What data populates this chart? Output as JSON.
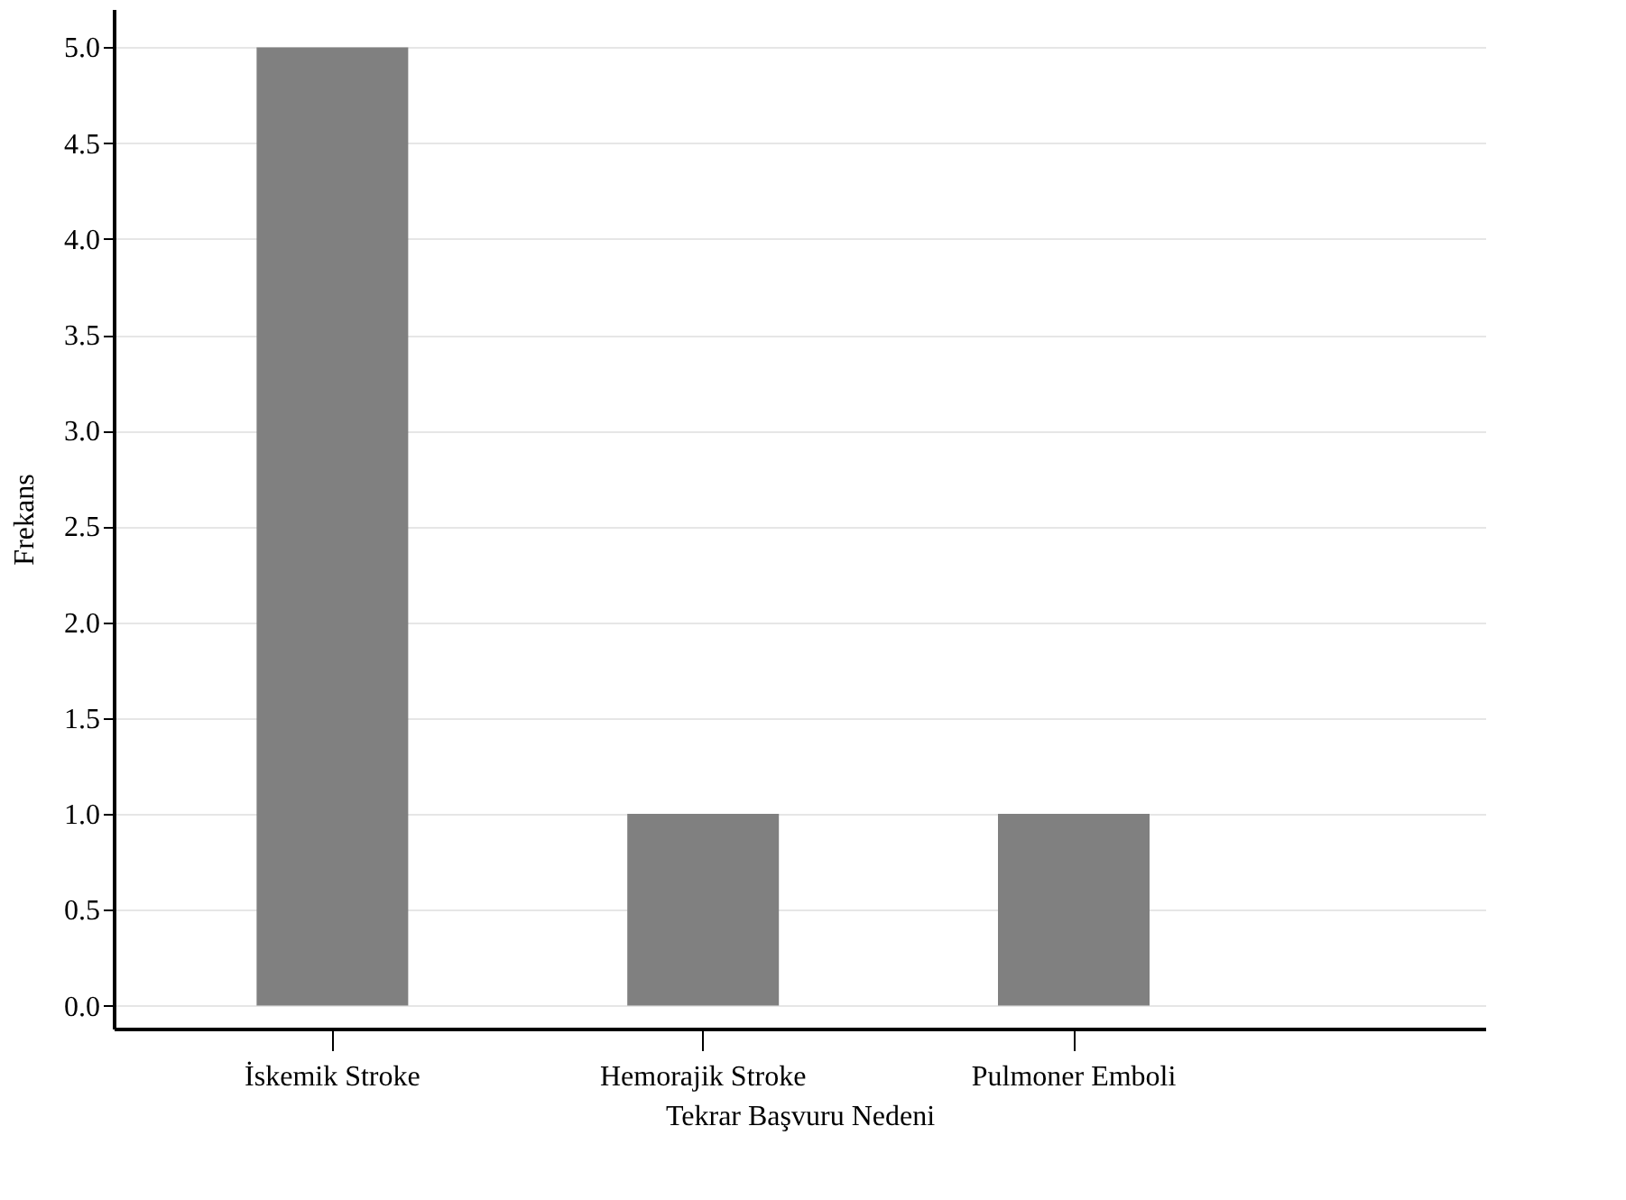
{
  "chart_data": {
    "type": "bar",
    "xlabel": "Tekrar Başvuru Nedeni",
    "ylabel": "Frekans",
    "categories": [
      "İskemik Stroke",
      "Hemorajik Stroke",
      "Pulmoner Emboli"
    ],
    "values": [
      5,
      1,
      1
    ],
    "color": "#808080",
    "ylim": [
      -0.12,
      5.2
    ],
    "yticks": [
      {
        "value": 0,
        "label": "0.0"
      },
      {
        "value": 0.5,
        "label": "0.5"
      },
      {
        "value": 1,
        "label": "1.0"
      },
      {
        "value": 1.5,
        "label": "1.5"
      },
      {
        "value": 2,
        "label": "2.0"
      },
      {
        "value": 2.5,
        "label": "2.5"
      },
      {
        "value": 3,
        "label": "3.0"
      },
      {
        "value": 3.5,
        "label": "3.5"
      },
      {
        "value": 4,
        "label": "4.0"
      },
      {
        "value": 4.5,
        "label": "4.5"
      },
      {
        "value": 5,
        "label": "5.0"
      }
    ],
    "grid": "y"
  }
}
